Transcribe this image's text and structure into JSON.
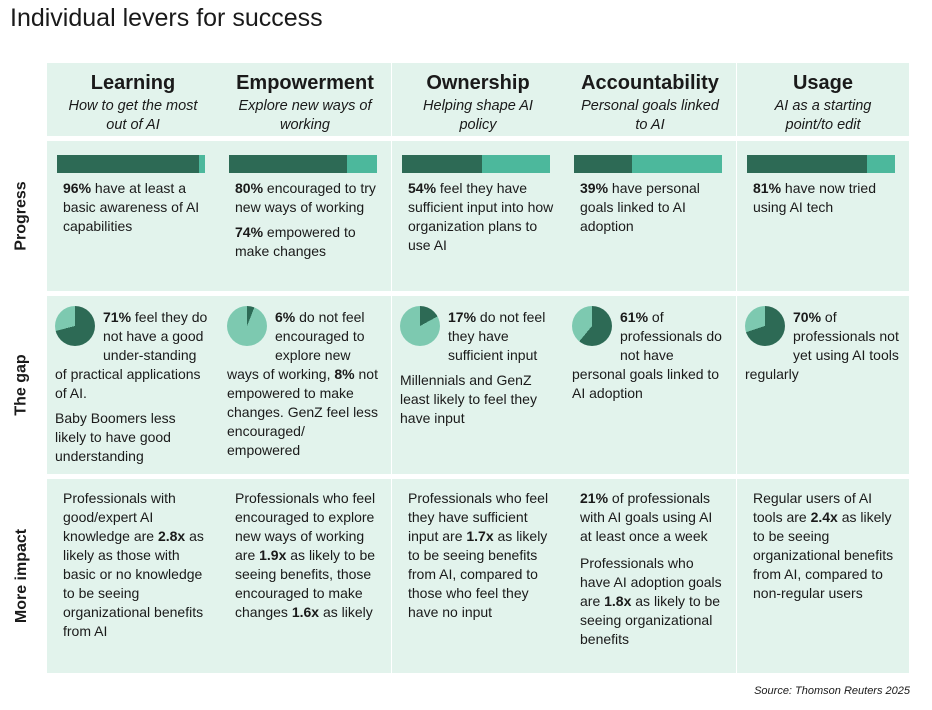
{
  "title": "Individual levers for success",
  "row_labels": {
    "progress": "Progress",
    "gap": "The gap",
    "impact": "More impact"
  },
  "colors": {
    "dark": "#2d6a55",
    "light": "#4cb89c",
    "pie_light": "#7dc9b0",
    "bg": "#e2f3ec"
  },
  "columns": [
    {
      "name": "Learning",
      "subtitle": "How to get the most out of AI",
      "progress_pct": 96,
      "progress": [
        {
          "bold": "96%",
          "text": " have at least a basic awareness of AI capabilities"
        }
      ],
      "gap_pct": 71,
      "gap_main": {
        "bold": "71%",
        "text": " feel they do not have a good under-standing of practical applications of AI."
      },
      "gap_extra": "Baby Boomers less likely to have good understanding",
      "impact": [
        {
          "t1": "Professionals with good/expert AI knowledge are ",
          "bold": "2.8x",
          "t2": " as likely as those with basic or no knowledge to be seeing organizational benefits from AI"
        }
      ]
    },
    {
      "name": "Empowerment",
      "subtitle": "Explore new ways of working",
      "progress_pct": 80,
      "progress": [
        {
          "bold": "80%",
          "text": " encouraged to try new ways of working"
        },
        {
          "bold": "74%",
          "text": " empowered to make changes"
        }
      ],
      "gap_pct": 6,
      "gap_main": {
        "bold": "6%",
        "text": " do not feel encouraged to explore new ways of working, ",
        "bold2": "8%",
        "text2": " not empowered to make changes. GenZ feel less encouraged/ empowered"
      },
      "gap_extra": "",
      "impact": [
        {
          "t1": "Professionals who feel encouraged to explore new ways of working are ",
          "bold": "1.9x",
          "t2": " as likely to be seeing benefits, those encouraged to make changes ",
          "bold2": "1.6x",
          "t3": " as likely"
        }
      ]
    },
    {
      "name": "Ownership",
      "subtitle": "Helping shape AI policy",
      "progress_pct": 54,
      "progress": [
        {
          "bold": "54%",
          "text": " feel they have sufficient input into how organization plans to use AI"
        }
      ],
      "gap_pct": 17,
      "gap_main": {
        "bold": "17%",
        "text": " do not feel they have sufficient input"
      },
      "gap_extra": "Millennials and GenZ least likely to feel they have input",
      "impact": [
        {
          "t1": "Professionals who feel they have sufficient input are ",
          "bold": "1.7x",
          "t2": " as likely to be seeing benefits from AI, compared to those who feel they have no input"
        }
      ]
    },
    {
      "name": "Accountability",
      "subtitle": "Personal goals linked to AI",
      "progress_pct": 39,
      "progress": [
        {
          "bold": "39%",
          "text": " have personal goals linked to AI adoption"
        }
      ],
      "gap_pct": 61,
      "gap_main": {
        "bold": "61%",
        "text": " of professionals do not have personal goals linked to AI adoption"
      },
      "gap_extra": "",
      "impact": [
        {
          "t1": "",
          "bold": "21%",
          "t2": " of professionals with AI goals using AI at least once a week"
        },
        {
          "t1": "Professionals who have AI adoption goals are ",
          "bold": "1.8x",
          "t2": " as likely to be seeing organizational benefits"
        }
      ]
    },
    {
      "name": "Usage",
      "subtitle": "AI as a starting point/to edit",
      "progress_pct": 81,
      "progress": [
        {
          "bold": "81%",
          "text": " have now tried using AI tech"
        }
      ],
      "gap_pct": 70,
      "gap_main": {
        "bold": "70%",
        "text": " of professionals not yet using AI tools regularly"
      },
      "gap_extra": "",
      "impact": [
        {
          "t1": "Regular users of AI tools are ",
          "bold": "2.4x",
          "t2": " as likely to be seeing organizational benefits from AI, compared to non-regular users"
        }
      ]
    }
  ],
  "source": "Source: Thomson Reuters 2025"
}
